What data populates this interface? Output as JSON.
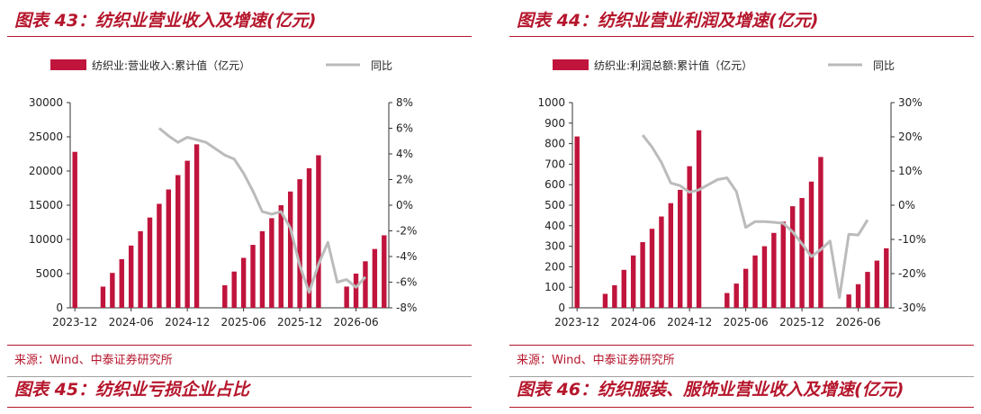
{
  "panels": [
    {
      "title": "图表 43：纺织业营业收入及增速(亿元)",
      "source": "来源：Wind、中泰证券研究所",
      "next_title": "图表 45：纺织业亏损企业占比",
      "chart_data": {
        "type": "bar+line",
        "legend": [
          "纺织业:营业收入:累计值（亿元）",
          "同比"
        ],
        "legend_placement": "top",
        "x_tick_labels": [
          "2023-12",
          "2024-06",
          "2024-12",
          "2025-06",
          "2025-12",
          "2026-06"
        ],
        "bars": {
          "name": "纺织业:营业收入:累计值（亿元）",
          "color": "#c0143c",
          "values": [
            22800,
            null,
            null,
            3100,
            5100,
            7100,
            9100,
            11200,
            13200,
            15200,
            17300,
            19400,
            21500,
            23900,
            null,
            null,
            3300,
            5300,
            7300,
            9200,
            11200,
            13100,
            15000,
            17000,
            18800,
            20400,
            22300,
            null,
            null,
            3100,
            5000,
            6800,
            8600,
            10600
          ]
        },
        "line": {
          "name": "同比",
          "color": "#bbbbbb",
          "values": [
            null,
            null,
            null,
            null,
            null,
            null,
            null,
            null,
            null,
            6.0,
            5.4,
            4.9,
            5.3,
            5.1,
            4.9,
            4.4,
            3.9,
            3.6,
            2.5,
            1.1,
            -0.5,
            -0.7,
            -0.5,
            -1.8,
            -4.7,
            -6.8,
            -4.6,
            -2.9,
            -6.0,
            -5.8,
            -6.4,
            -5.6,
            null,
            null
          ]
        },
        "y_left": {
          "min": 0,
          "max": 30000,
          "ticks": [
            0,
            5000,
            10000,
            15000,
            20000,
            25000,
            30000
          ]
        },
        "y_right": {
          "min": -8,
          "max": 8,
          "ticks": [
            -8,
            -6,
            -4,
            -2,
            0,
            2,
            4,
            6,
            8
          ],
          "suffix": "%"
        }
      }
    },
    {
      "title": "图表 44：纺织业营业利润及增速(亿元)",
      "source": "来源：Wind、中泰证券研究所",
      "next_title": "图表 46：纺织服装、服饰业营业收入及增速(亿元)",
      "chart_data": {
        "type": "bar+line",
        "legend": [
          "纺织业:利润总额:累计值（亿元）",
          "同比"
        ],
        "legend_placement": "top",
        "x_tick_labels": [
          "2023-12",
          "2024-06",
          "2024-12",
          "2025-06",
          "2025-12",
          "2026-06"
        ],
        "bars": {
          "name": "纺织业:利润总额:累计值（亿元）",
          "color": "#c0143c",
          "values": [
            835,
            null,
            null,
            68,
            110,
            185,
            255,
            320,
            385,
            445,
            510,
            575,
            690,
            865,
            null,
            null,
            72,
            118,
            190,
            255,
            300,
            365,
            420,
            495,
            535,
            615,
            735,
            null,
            null,
            65,
            115,
            175,
            230,
            290
          ]
        },
        "line": {
          "name": "同比",
          "color": "#bbbbbb",
          "values": [
            null,
            null,
            null,
            null,
            null,
            null,
            null,
            20.5,
            17.0,
            12.5,
            6.5,
            5.7,
            3.8,
            4.5,
            6.0,
            7.5,
            8.0,
            4.0,
            -6.5,
            -4.8,
            -4.8,
            -5.0,
            -5.3,
            -7.8,
            -11.3,
            -15.0,
            -13.0,
            -10.5,
            -27.0,
            -8.5,
            -8.7,
            -4.3,
            null,
            null
          ]
        },
        "y_left": {
          "min": 0,
          "max": 1000,
          "ticks": [
            0,
            100,
            200,
            300,
            400,
            500,
            600,
            700,
            800,
            900,
            1000
          ]
        },
        "y_right": {
          "min": -30,
          "max": 30,
          "ticks": [
            -30,
            -20,
            -10,
            0,
            10,
            20,
            30
          ],
          "suffix": "%"
        }
      }
    }
  ]
}
